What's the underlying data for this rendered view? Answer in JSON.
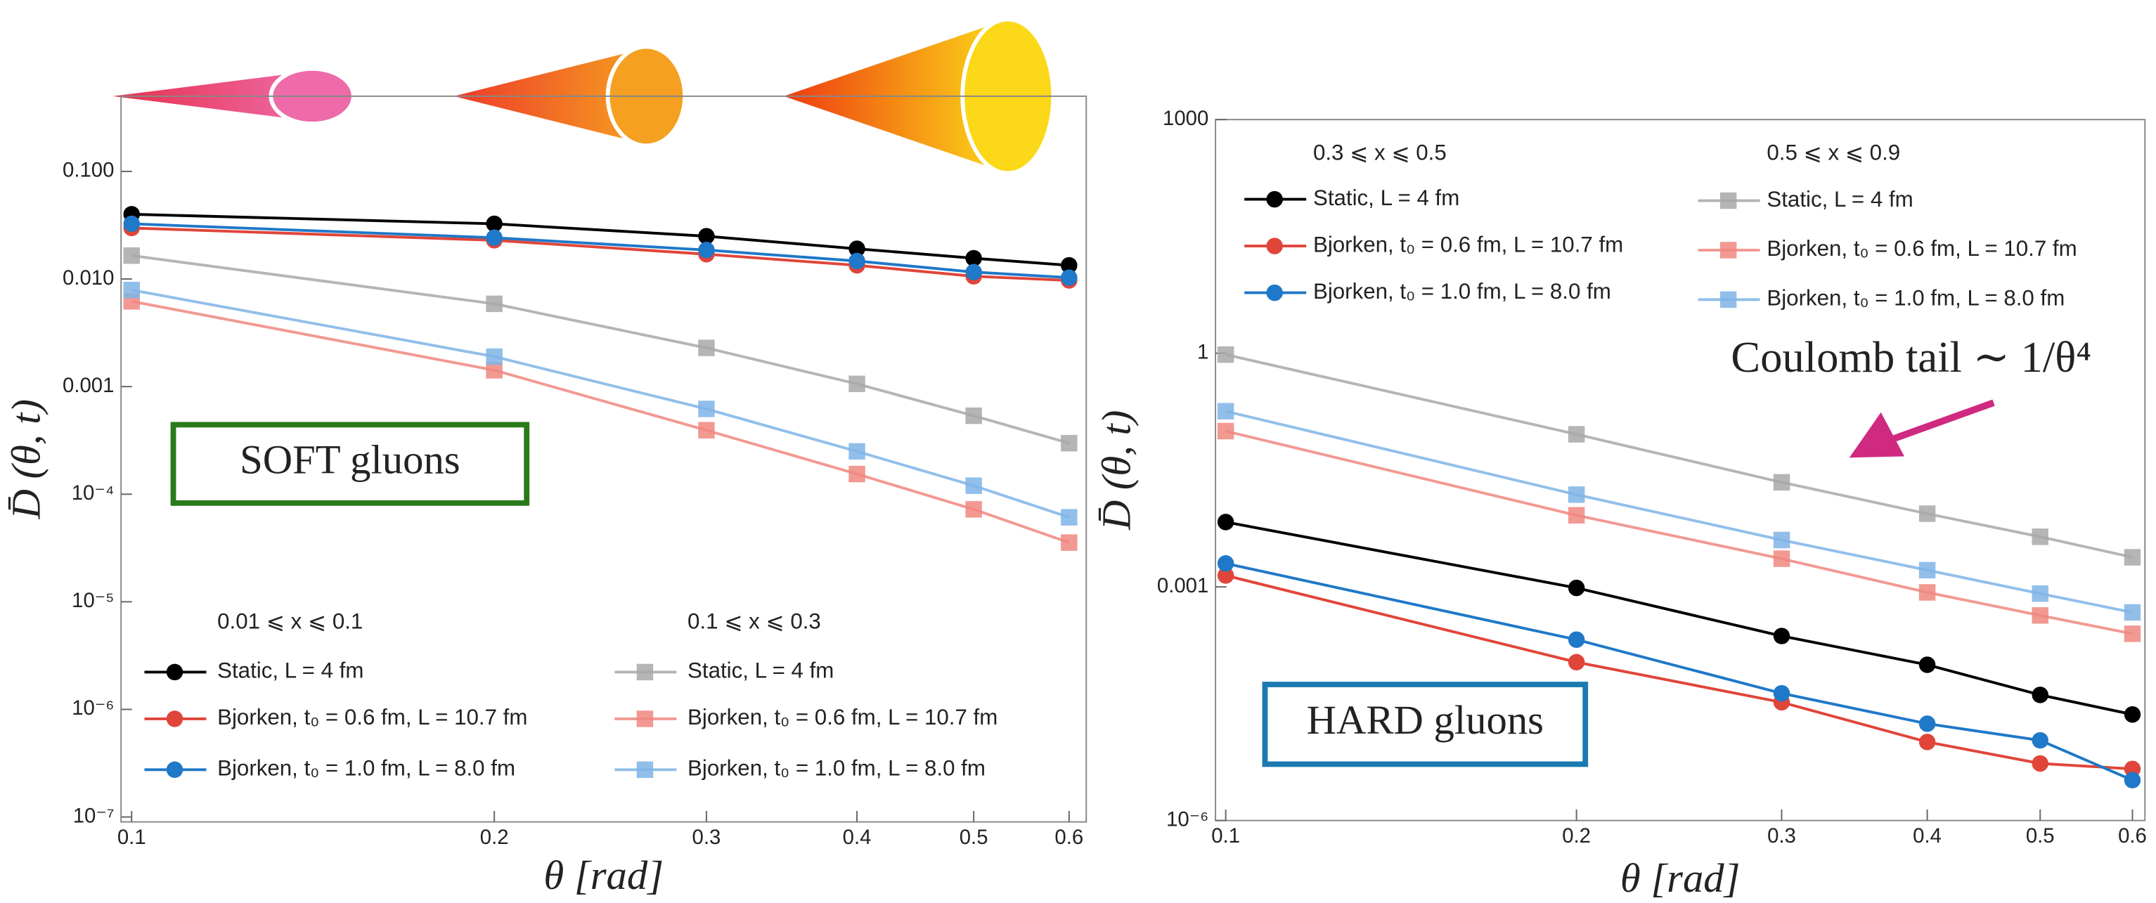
{
  "chart_data": [
    {
      "type": "line",
      "xlog": true,
      "ylog": true,
      "xlabel": "θ [rad]",
      "ylabel": "D̄ (θ, t)",
      "annotation": "SOFT gluons",
      "annotation_color": "#2a7a1a",
      "x": [
        0.1,
        0.2,
        0.3,
        0.4,
        0.5,
        0.6
      ],
      "xlim": [
        0.098,
        0.62
      ],
      "xticks": [
        0.1,
        0.2,
        0.3,
        0.4,
        0.5,
        0.6
      ],
      "ylim": [
        9e-08,
        0.5
      ],
      "yticks": [
        {
          "value": 0.1,
          "label": "0.100"
        },
        {
          "value": 0.01,
          "label": "0.010"
        },
        {
          "value": 0.001,
          "label": "0.001"
        },
        {
          "value": 0.0001,
          "label": "10⁻⁴"
        },
        {
          "value": 1e-05,
          "label": "10⁻⁵"
        },
        {
          "value": 1e-06,
          "label": "10⁻⁶"
        },
        {
          "value": 1e-07,
          "label": "10⁻⁷"
        }
      ],
      "series_groups": [
        {
          "title": "0.01 ⩽ x ⩽ 0.1",
          "marker": "circle",
          "series": [
            {
              "name": "Static, L = 4 fm",
              "color": "#000000",
              "values": [
                0.04,
                0.0326,
                0.025,
                0.0191,
                0.0156,
                0.0134
              ]
            },
            {
              "name": "Bjorken, t₀ = 0.6 fm, L = 10.7 fm",
              "color": "#e0453a",
              "values": [
                0.0298,
                0.0229,
                0.017,
                0.0134,
                0.0106,
                0.0097
              ]
            },
            {
              "name": "Bjorken, t₀ = 1.0 fm, L = 8.0 fm",
              "color": "#1f78c8",
              "values": [
                0.0326,
                0.0242,
                0.0186,
                0.0147,
                0.0116,
                0.0103
              ]
            }
          ]
        },
        {
          "title": "0.1 ⩽ x ⩽ 0.3",
          "marker": "square",
          "series": [
            {
              "name": "Static, L = 4 fm",
              "color": "#a8a8a8",
              "values": [
                0.0165,
                0.00588,
                0.00229,
                0.00106,
                0.000536,
                0.000298
              ]
            },
            {
              "name": "Bjorken, t₀ = 0.6 fm, L = 10.7 fm",
              "color": "#f0877f",
              "values": [
                0.0062,
                0.00142,
                0.000393,
                0.000154,
                7.23e-05,
                3.55e-05
              ]
            },
            {
              "name": "Bjorken, t₀ = 1.0 fm, L = 8.0 fm",
              "color": "#7fb4e6",
              "values": [
                0.0079,
                0.0019,
                0.00062,
                0.00025,
                0.00012,
                6.1e-05
              ]
            }
          ]
        }
      ]
    },
    {
      "type": "line",
      "xlog": true,
      "ylog": true,
      "xlabel": "θ [rad]",
      "ylabel": "D̄ (θ, t)",
      "annotation": "HARD gluons",
      "annotation_color": "#1a7ab0",
      "note": "Coulomb tail ∼ 1/θ⁴",
      "x": [
        0.1,
        0.2,
        0.3,
        0.4,
        0.5,
        0.6
      ],
      "xlim": [
        0.098,
        0.615
      ],
      "xticks": [
        0.1,
        0.2,
        0.3,
        0.4,
        0.5,
        0.6
      ],
      "ylim": [
        1e-06,
        1000
      ],
      "yticks": [
        1000,
        1,
        0.001,
        {
          "value": 1e-06,
          "label": "10⁻⁶"
        }
      ],
      "series_groups": [
        {
          "title": "0.3 ⩽ x ⩽ 0.5",
          "marker": "circle",
          "series": [
            {
              "name": "Static, L = 4 fm",
              "color": "#000000",
              "values": [
                0.0068,
                0.00097,
                0.000234,
                0.0001,
                4.1e-05,
                2.3e-05
              ]
            },
            {
              "name": "Bjorken, t₀ = 0.6 fm, L = 10.7 fm",
              "color": "#e0453a",
              "values": [
                0.0014,
                0.000108,
                3.3e-05,
                1.02e-05,
                5.4e-06,
                4.6e-06
              ]
            },
            {
              "name": "Bjorken, t₀ = 1.0 fm, L = 8.0 fm",
              "color": "#1f78c8",
              "values": [
                0.002,
                0.00021,
                4.3e-05,
                1.75e-05,
                1.07e-05,
                3.3e-06
              ]
            }
          ]
        },
        {
          "title": "0.5 ⩽ x ⩽ 0.9",
          "marker": "square",
          "series": [
            {
              "name": "Static, L = 4 fm",
              "color": "#a8a8a8",
              "values": [
                0.96,
                0.091,
                0.022,
                0.0087,
                0.0044,
                0.0024
              ]
            },
            {
              "name": "Bjorken, t₀ = 0.6 fm, L = 10.7 fm",
              "color": "#f0877f",
              "values": [
                0.1,
                0.0083,
                0.0023,
                0.00085,
                0.00043,
                0.00025
              ]
            },
            {
              "name": "Bjorken, t₀ = 1.0 fm, L = 8.0 fm",
              "color": "#7fb4e6",
              "values": [
                0.18,
                0.0153,
                0.004,
                0.00164,
                0.00082,
                0.00047
              ]
            }
          ]
        }
      ]
    }
  ]
}
